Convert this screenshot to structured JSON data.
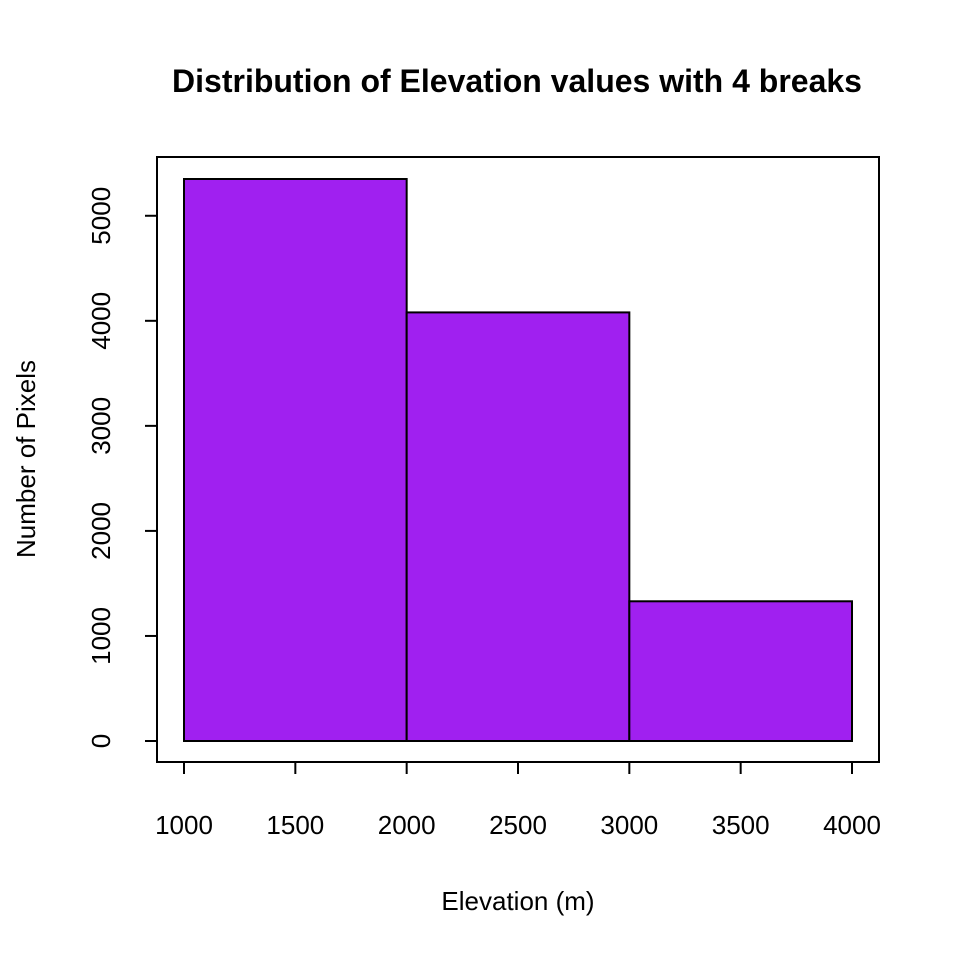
{
  "chart_data": {
    "type": "bar",
    "title": "Distribution of Elevation values with 4 breaks",
    "xlabel": "Elevation (m)",
    "ylabel": "Number of Pixels",
    "bins": [
      {
        "from": 1000,
        "to": 2000,
        "count": 5350
      },
      {
        "from": 2000,
        "to": 3000,
        "count": 4080
      },
      {
        "from": 3000,
        "to": 4000,
        "count": 1330
      }
    ],
    "xlim": [
      1000,
      4000
    ],
    "ylim": [
      0,
      5350
    ],
    "xticks": [
      1000,
      1500,
      2000,
      2500,
      3000,
      3500,
      4000
    ],
    "xtick_labels": [
      "1000",
      "1500",
      "2000",
      "2500",
      "3000",
      "3500",
      "4000"
    ],
    "yticks": [
      0,
      1000,
      2000,
      3000,
      4000,
      5000
    ],
    "ytick_labels": [
      "0",
      "1000",
      "2000",
      "3000",
      "4000",
      "5000"
    ],
    "bar_color": "#A020F0",
    "grid": false,
    "legend": "none"
  }
}
